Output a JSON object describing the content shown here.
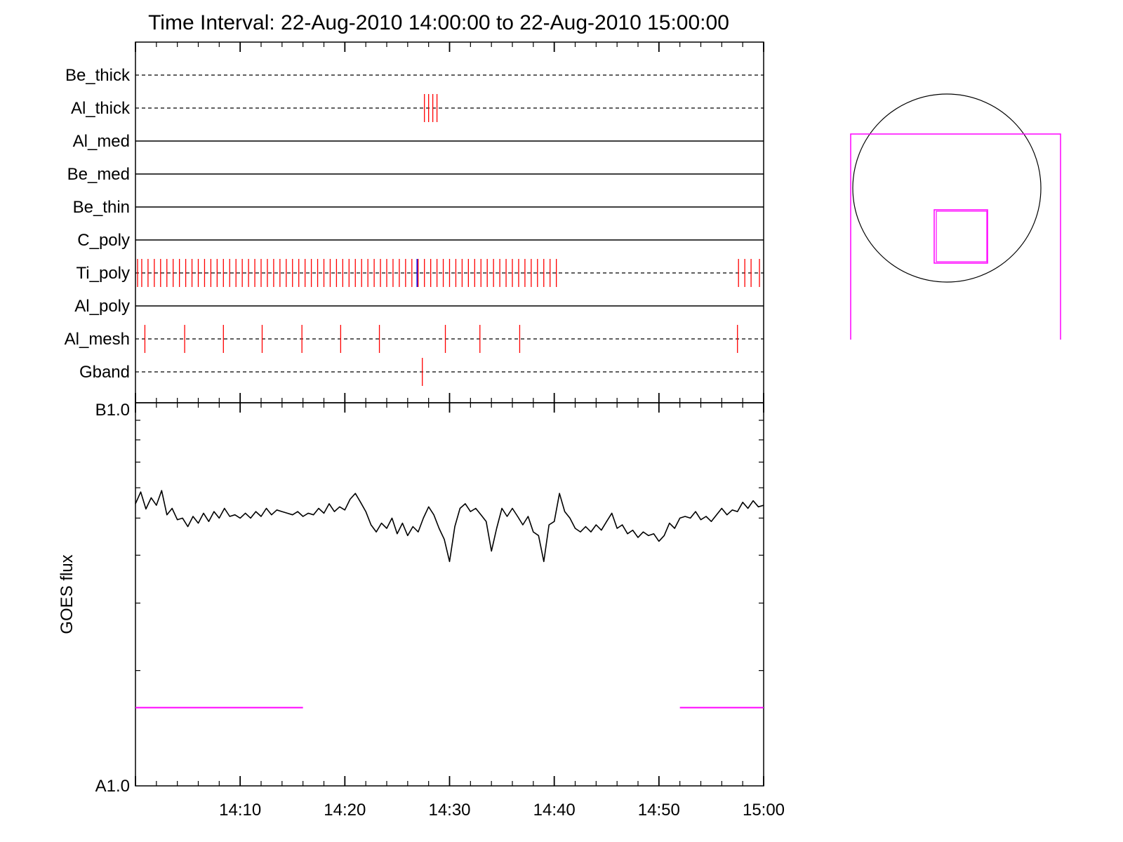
{
  "title": "Time Interval: 22-Aug-2010 14:00:00 to 22-Aug-2010 15:00:00",
  "colors": {
    "axis": "#000000",
    "marker": "#ff0000",
    "marker_blue": "#0000ff",
    "magenta": "#ff00ff",
    "sun": "#000000"
  },
  "chart_data": [
    {
      "type": "event_timeline",
      "title": "Time Interval: 22-Aug-2010 14:00:00 to 22-Aug-2010 15:00:00",
      "x_unit": "minutes after 14:00",
      "xlim": [
        0,
        60
      ],
      "rows": [
        {
          "label": "Be_thick",
          "line": "dashed",
          "events": []
        },
        {
          "label": "Al_thick",
          "line": "dashed",
          "events": [
            27.6,
            28.0,
            28.4,
            28.8
          ]
        },
        {
          "label": "Al_med",
          "line": "solid",
          "events": []
        },
        {
          "label": "Be_med",
          "line": "solid",
          "events": []
        },
        {
          "label": "Be_thin",
          "line": "solid",
          "events": []
        },
        {
          "label": "C_poly",
          "line": "solid",
          "events": []
        },
        {
          "label": "Ti_poly",
          "line": "dashed",
          "events": [
            0.2,
            0.6,
            1.2,
            1.8,
            2.4,
            3.0,
            3.6,
            4.2,
            4.8,
            5.4,
            6.0,
            6.6,
            7.2,
            7.8,
            8.4,
            9.0,
            9.6,
            10.2,
            10.8,
            11.4,
            12.0,
            12.6,
            13.2,
            13.8,
            14.4,
            15.0,
            15.6,
            16.2,
            16.8,
            17.4,
            18.0,
            18.6,
            19.2,
            19.8,
            20.4,
            21.0,
            21.6,
            22.2,
            22.8,
            23.4,
            24.0,
            24.6,
            25.2,
            25.8,
            26.4,
            27.0,
            27.6,
            28.2,
            28.8,
            29.4,
            30.0,
            30.6,
            31.2,
            31.8,
            32.4,
            33.0,
            33.6,
            34.2,
            34.8,
            35.4,
            36.0,
            36.6,
            37.2,
            37.8,
            38.4,
            39.0,
            39.6,
            40.2,
            57.6,
            58.2,
            58.8,
            59.6
          ],
          "events_blue": [
            26.9
          ]
        },
        {
          "label": "Al_poly",
          "line": "solid",
          "events": []
        },
        {
          "label": "Al_mesh",
          "line": "dashed",
          "events": [
            0.9,
            4.7,
            8.4,
            12.1,
            15.9,
            19.6,
            23.3,
            29.6,
            32.9,
            36.7,
            57.5
          ]
        },
        {
          "label": "Gband",
          "line": "dashed",
          "events": [
            27.4
          ]
        }
      ]
    },
    {
      "type": "line",
      "xlabel": "",
      "ylabel": "GOES flux",
      "xlim": [
        0,
        60
      ],
      "x_ticks": [
        {
          "value": 10,
          "label": "14:10"
        },
        {
          "value": 20,
          "label": "14:20"
        },
        {
          "value": 30,
          "label": "14:30"
        },
        {
          "value": 40,
          "label": "14:40"
        },
        {
          "value": 50,
          "label": "14:50"
        },
        {
          "value": 60,
          "label": "15:00"
        }
      ],
      "y_scale": "log",
      "ylim": [
        1e-08,
        1e-07
      ],
      "y_ticks": [
        {
          "value": 1e-07,
          "label": "B1.0"
        },
        {
          "value": 1e-08,
          "label": "A1.0"
        }
      ],
      "series": [
        {
          "color": "#000000",
          "x": [
            0,
            0.5,
            1,
            1.5,
            2,
            2.5,
            3,
            3.5,
            4,
            4.5,
            5,
            5.5,
            6,
            6.5,
            7,
            7.5,
            8,
            8.5,
            9,
            9.5,
            10,
            10.5,
            11,
            11.5,
            12,
            12.5,
            13,
            13.5,
            14,
            14.5,
            15,
            15.5,
            16,
            16.5,
            17,
            17.5,
            18,
            18.5,
            19,
            19.5,
            20,
            20.5,
            21,
            21.5,
            22,
            22.5,
            23,
            23.5,
            24,
            24.5,
            25,
            25.5,
            26,
            26.5,
            27,
            27.5,
            28,
            28.5,
            29,
            29.5,
            30,
            30.5,
            31,
            31.5,
            32,
            32.5,
            33,
            33.5,
            34,
            34.5,
            35,
            35.5,
            36,
            36.5,
            37,
            37.5,
            38,
            38.5,
            39,
            39.5,
            40,
            40.5,
            41,
            41.5,
            42,
            42.5,
            43,
            43.5,
            44,
            44.5,
            45,
            45.5,
            46,
            46.5,
            47,
            47.5,
            48,
            48.5,
            49,
            49.5,
            50,
            50.5,
            51,
            51.5,
            52,
            52.5,
            53,
            53.5,
            54,
            54.5,
            55,
            55.5,
            56,
            56.5,
            57,
            57.5,
            58,
            58.5,
            59,
            59.5,
            60
          ],
          "y": [
            5.45e-08,
            5.85e-08,
            5.28e-08,
            5.65e-08,
            5.4e-08,
            5.9e-08,
            5.1e-08,
            5.3e-08,
            4.95e-08,
            5e-08,
            4.75e-08,
            5.05e-08,
            4.85e-08,
            5.15e-08,
            4.9e-08,
            5.2e-08,
            5e-08,
            5.3e-08,
            5.05e-08,
            5.1e-08,
            5e-08,
            5.15e-08,
            5e-08,
            5.2e-08,
            5.05e-08,
            5.3e-08,
            5.1e-08,
            5.25e-08,
            5.2e-08,
            5.15e-08,
            5.1e-08,
            5.2e-08,
            5.05e-08,
            5.15e-08,
            5.1e-08,
            5.3e-08,
            5.15e-08,
            5.45e-08,
            5.2e-08,
            5.35e-08,
            5.25e-08,
            5.6e-08,
            5.8e-08,
            5.5e-08,
            5.2e-08,
            4.8e-08,
            4.6e-08,
            4.85e-08,
            4.7e-08,
            5e-08,
            4.55e-08,
            4.85e-08,
            4.5e-08,
            4.75e-08,
            4.6e-08,
            5e-08,
            5.35e-08,
            5.1e-08,
            4.7e-08,
            4.4e-08,
            3.85e-08,
            4.75e-08,
            5.3e-08,
            5.45e-08,
            5.2e-08,
            5.3e-08,
            5.1e-08,
            4.9e-08,
            4.1e-08,
            4.7e-08,
            5.3e-08,
            5.05e-08,
            5.3e-08,
            5.05e-08,
            4.8e-08,
            5.05e-08,
            4.6e-08,
            4.5e-08,
            3.85e-08,
            4.8e-08,
            4.9e-08,
            5.8e-08,
            5.2e-08,
            5e-08,
            4.7e-08,
            4.6e-08,
            4.75e-08,
            4.6e-08,
            4.8e-08,
            4.65e-08,
            4.9e-08,
            5.15e-08,
            4.7e-08,
            4.8e-08,
            4.55e-08,
            4.65e-08,
            4.45e-08,
            4.6e-08,
            4.5e-08,
            4.55e-08,
            4.35e-08,
            4.5e-08,
            4.85e-08,
            4.7e-08,
            5e-08,
            5.05e-08,
            5e-08,
            5.2e-08,
            4.95e-08,
            5.05e-08,
            4.9e-08,
            5.1e-08,
            5.3e-08,
            5.1e-08,
            5.25e-08,
            5.2e-08,
            5.5e-08,
            5.3e-08,
            5.55e-08,
            5.35e-08,
            5.4e-08
          ]
        },
        {
          "color": "#ff00ff",
          "segments": [
            {
              "x": [
                0,
                16
              ],
              "y": [
                1.6e-08,
                1.6e-08
              ]
            },
            {
              "x": [
                52,
                60
              ],
              "y": [
                1.6e-08,
                1.6e-08
              ]
            }
          ]
        }
      ]
    }
  ]
}
